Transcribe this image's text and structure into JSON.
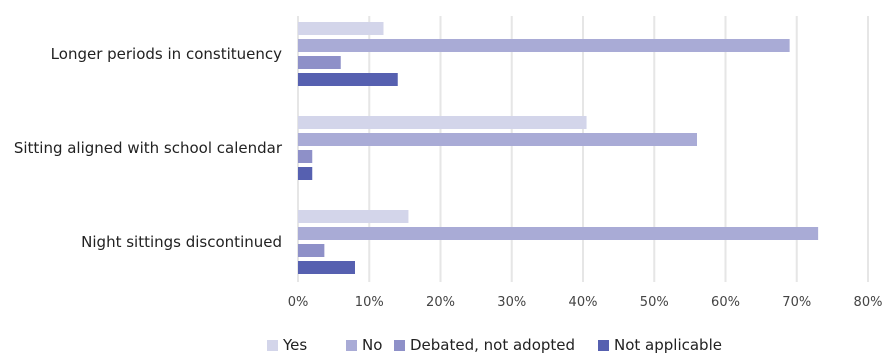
{
  "chart_data": {
    "type": "bar",
    "orientation": "horizontal",
    "title": "",
    "xlabel": "",
    "ylabel": "",
    "categories": [
      "Longer periods in constituency",
      "Sitting aligned with school calendar",
      "Night sittings discontinued"
    ],
    "series": [
      {
        "name": "Yes",
        "color": "#d3d5ea",
        "values": [
          12,
          40.5,
          15.5
        ]
      },
      {
        "name": "No",
        "color": "#a9abd6",
        "values": [
          69,
          56,
          73
        ]
      },
      {
        "name": "Debated, not adopted",
        "color": "#8e90c8",
        "values": [
          6,
          2,
          3.7
        ]
      },
      {
        "name": "Not applicable",
        "color": "#5660b0",
        "values": [
          14,
          2,
          8
        ]
      }
    ],
    "xlim": [
      0,
      80
    ],
    "xticks": [
      "0%",
      "10%",
      "20%",
      "30%",
      "40%",
      "50%",
      "60%",
      "70%",
      "80%"
    ],
    "grid": true,
    "legend_position": "bottom"
  }
}
